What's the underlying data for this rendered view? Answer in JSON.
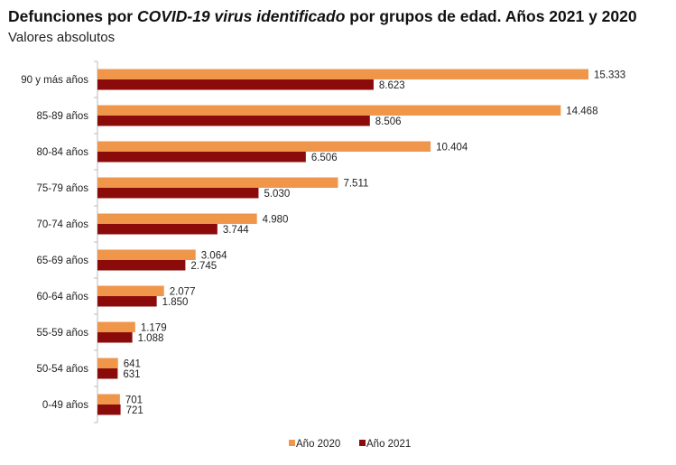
{
  "chart_data": {
    "type": "bar",
    "orientation": "horizontal",
    "title_parts": {
      "pre": "Defunciones por ",
      "italic": "COVID-19 virus identificado",
      "post": " por grupos de edad. Años 2021 y 2020"
    },
    "subtitle": "Valores absolutos",
    "categories": [
      "90 y más años",
      "85-89 años",
      "80-84 años",
      "75-79 años",
      "70-74 años",
      "65-69 años",
      "60-64 años",
      "55-59 años",
      "50-54 años",
      "0-49 años"
    ],
    "series": [
      {
        "name": "Año 2020",
        "color": "#F0964B",
        "values": [
          15333,
          14468,
          10404,
          7511,
          4980,
          3064,
          2077,
          1179,
          641,
          701
        ],
        "labels": [
          "15.333",
          "14.468",
          "10.404",
          "7.511",
          "4.980",
          "3.064",
          "2.077",
          "1.179",
          "641",
          "701"
        ]
      },
      {
        "name": "Año 2021",
        "color": "#8B0A0A",
        "values": [
          8623,
          8506,
          6506,
          5030,
          3744,
          2745,
          1850,
          1088,
          631,
          721
        ],
        "labels": [
          "8.623",
          "8.506",
          "6.506",
          "5.030",
          "3.744",
          "2.745",
          "1.850",
          "1.088",
          "631",
          "721"
        ]
      }
    ],
    "xlim": [
      0,
      15333
    ],
    "grid": false,
    "legend": "bottom"
  }
}
